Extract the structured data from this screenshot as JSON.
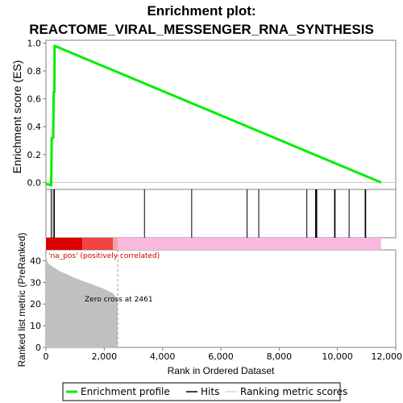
{
  "chart_data": {
    "type": "line",
    "title_line1": "Enrichment plot:",
    "title_line2": "REACTOME_VIRAL_MESSENGER_RNA_SYNTHESIS",
    "es_panel": {
      "ylabel": "Enrichment score (ES)",
      "ylim": [
        -0.05,
        1.02
      ],
      "yticks": [
        0.0,
        0.2,
        0.4,
        0.6,
        0.8,
        1.0
      ],
      "ytick_labels": [
        "0.0",
        "0.2",
        "0.4",
        "0.6",
        "0.8",
        "1.0"
      ],
      "line_color": "#00ee00",
      "points": [
        [
          0,
          -0.01
        ],
        [
          180,
          -0.02
        ],
        [
          200,
          0.32
        ],
        [
          250,
          0.32
        ],
        [
          265,
          0.65
        ],
        [
          290,
          0.65
        ],
        [
          300,
          0.98
        ],
        [
          11500,
          0.0
        ]
      ]
    },
    "hits": [
      180,
      250,
      290,
      3380,
      5000,
      6900,
      7300,
      8950,
      9250,
      9270,
      9290,
      9900,
      9920,
      10400,
      10950,
      10970
    ],
    "hit_color": "#000000",
    "xlim": [
      0,
      12000
    ],
    "xticks": [
      0,
      2000,
      4000,
      6000,
      8000,
      10000,
      12000
    ],
    "xtick_labels": [
      "0",
      "2,000",
      "4,000",
      "6,000",
      "8,000",
      "10,000",
      "12,000"
    ],
    "xlabel": "Rank in Ordered Dataset",
    "n_genes": 11500,
    "color_bar": [
      {
        "from": 0,
        "to": 1250,
        "color": "#dd0000"
      },
      {
        "from": 1250,
        "to": 2300,
        "color": "#ee4444"
      },
      {
        "from": 2300,
        "to": 2460,
        "color": "#f5a0a0"
      },
      {
        "from": 2460,
        "to": 11500,
        "color": "#f9b8e0"
      }
    ],
    "metric_panel": {
      "ylabel": "Ranked list metric (PreRanked)",
      "ylim": [
        0,
        45
      ],
      "yticks": [
        0,
        10,
        20,
        30,
        40
      ],
      "ytick_labels": [
        "0",
        "10",
        "20",
        "30",
        "40"
      ],
      "fill_color": "#c0c0c0",
      "profile": [
        [
          0,
          43
        ],
        [
          40,
          40
        ],
        [
          100,
          38.5
        ],
        [
          250,
          37
        ],
        [
          500,
          35
        ],
        [
          1000,
          32
        ],
        [
          1500,
          29.5
        ],
        [
          2000,
          27
        ],
        [
          2300,
          25
        ],
        [
          2420,
          23
        ],
        [
          2461,
          20
        ],
        [
          2461,
          0
        ]
      ],
      "zero_cross": 2461,
      "zero_cross_label": "Zero cross at 2461",
      "pos_label": "'na_pos' (positively correlated)",
      "pos_label_color": "#cc0000"
    },
    "legend": [
      {
        "name": "Enrichment profile",
        "color": "#00ee00",
        "style": "thick"
      },
      {
        "name": "Hits",
        "color": "#000000",
        "style": "thin"
      },
      {
        "name": "Ranking metric scores",
        "color": "#d8d8d8",
        "style": "thin"
      }
    ]
  }
}
